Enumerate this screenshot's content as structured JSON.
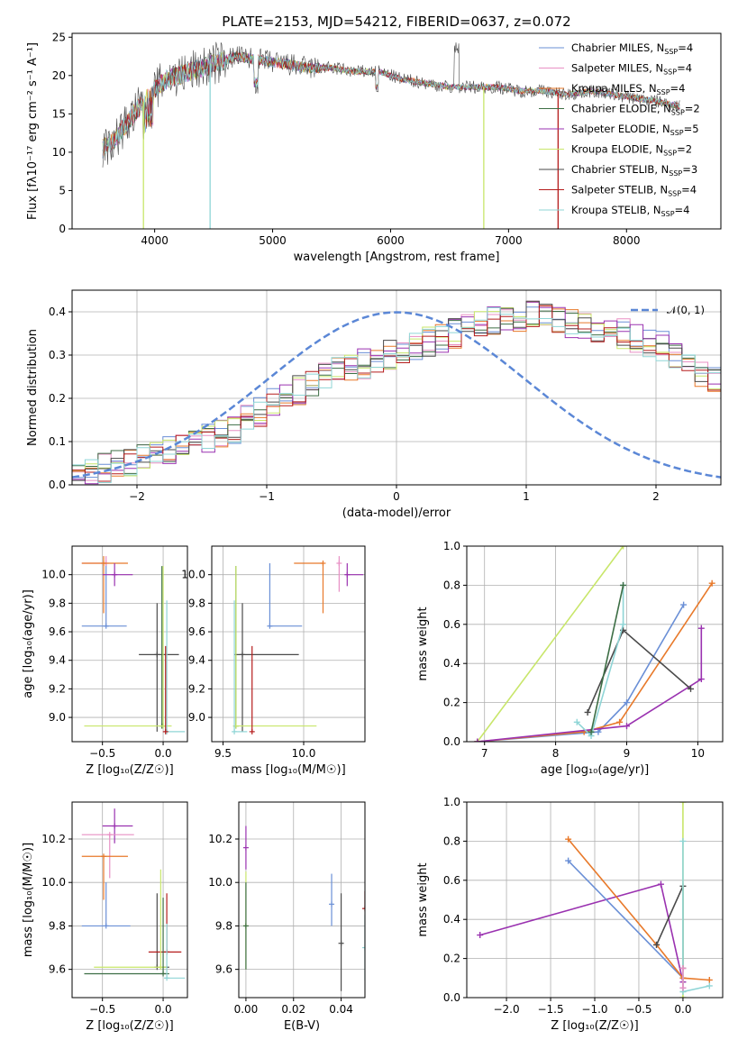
{
  "colors": {
    "chabrier_miles": "#6a8fd6",
    "salpeter_miles": "#e88fc4",
    "kroupa_miles": "#e8792a",
    "chabrier_elodie": "#3d6e45",
    "salpeter_elodie": "#9a32b0",
    "kroupa_elodie": "#c8e66a",
    "chabrier_stelib": "#4a4a4a",
    "salpeter_stelib": "#b51c1c",
    "kroupa_stelib": "#8fd5d6",
    "normal_curve": "#5b87d6"
  },
  "chart_data": [
    {
      "id": "spectrum",
      "type": "line",
      "title": "PLATE=2153, MJD=54212, FIBERID=0637, z=0.072",
      "xlabel": "wavelength [Angstrom, rest frame]",
      "ylabel": "Flux [fλ10⁻¹⁷ erg cm⁻² s⁻¹ A⁻¹]",
      "xlim": [
        3300,
        8800
      ],
      "ylim": [
        0,
        25.5
      ],
      "xticks": [
        "4000",
        "5000",
        "6000",
        "7000",
        "8000"
      ],
      "yticks": [
        "0",
        "5",
        "10",
        "15",
        "20",
        "25"
      ],
      "grid": false,
      "legend_position": "top-right",
      "legend": [
        {
          "main": "Chabrier MILES, N",
          "sub": "SSP",
          "tail": "=4",
          "color": "#6a8fd6"
        },
        {
          "main": "Salpeter MILES, N",
          "sub": "SSP",
          "tail": "=4",
          "color": "#e88fc4"
        },
        {
          "main": "Kroupa MILES, N",
          "sub": "SSP",
          "tail": "=4",
          "color": "#e8792a"
        },
        {
          "main": "Chabrier ELODIE, N",
          "sub": "SSP",
          "tail": "=2",
          "color": "#3d6e45"
        },
        {
          "main": "Salpeter ELODIE, N",
          "sub": "SSP",
          "tail": "=5",
          "color": "#9a32b0"
        },
        {
          "main": "Kroupa ELODIE, N",
          "sub": "SSP",
          "tail": "=2",
          "color": "#c8e66a"
        },
        {
          "main": "Chabrier STELIB, N",
          "sub": "SSP",
          "tail": "=3",
          "color": "#4a4a4a"
        },
        {
          "main": "Salpeter STELIB, N",
          "sub": "SSP",
          "tail": "=4",
          "color": "#b51c1c"
        },
        {
          "main": "Kroupa STELIB, N",
          "sub": "SSP",
          "tail": "=4",
          "color": "#8fd5d6"
        }
      ],
      "continuum": {
        "x": [
          3560,
          3650,
          3800,
          3950,
          4100,
          4300,
          4500,
          4700,
          4900,
          5100,
          5300,
          5500,
          5700,
          5900,
          6100,
          6300,
          6500,
          6700,
          6900,
          7100,
          7300,
          7500,
          7700,
          7900,
          8100,
          8300,
          8450
        ],
        "y": [
          10.5,
          11.5,
          14.5,
          17.5,
          19.5,
          20.5,
          21.5,
          22.5,
          22.0,
          21.5,
          21.0,
          21.0,
          20.5,
          20.5,
          19.5,
          19.0,
          18.5,
          18.5,
          18.5,
          18.0,
          18.0,
          17.5,
          18.0,
          17.5,
          17.0,
          16.5,
          16.0
        ]
      },
      "dips": [
        {
          "x": 3905,
          "y": 0.0,
          "series": "Kroupa ELODIE"
        },
        {
          "x": 4470,
          "y": 0.0,
          "series": "Kroupa STELIB"
        },
        {
          "x": 6790,
          "y": 0.0,
          "series": "Kroupa ELODIE"
        },
        {
          "x": 7420,
          "y": 0.0,
          "series": "Salpeter STELIB"
        }
      ]
    },
    {
      "id": "residuals",
      "type": "step",
      "xlabel": "(data-model)/error",
      "ylabel": "Normed distribution",
      "xlim": [
        -2.5,
        2.5
      ],
      "ylim": [
        0,
        0.45
      ],
      "xticks": [
        "−2",
        "−1",
        "0",
        "1",
        "2"
      ],
      "yticks": [
        "0.0",
        "0.1",
        "0.2",
        "0.3",
        "0.4"
      ],
      "grid": true,
      "legend_position": "top-right",
      "legend": [
        {
          "label": "𝒩(0, 1)",
          "style": "dashed",
          "color": "#5b87d6"
        }
      ],
      "bin_width": 0.1,
      "histogram_mean": [
        0.03,
        0.035,
        0.04,
        0.045,
        0.05,
        0.06,
        0.07,
        0.08,
        0.09,
        0.1,
        0.11,
        0.12,
        0.13,
        0.15,
        0.17,
        0.19,
        0.2,
        0.22,
        0.24,
        0.25,
        0.26,
        0.27,
        0.28,
        0.29,
        0.3,
        0.31,
        0.32,
        0.33,
        0.34,
        0.35,
        0.36,
        0.37,
        0.38,
        0.385,
        0.39,
        0.395,
        0.385,
        0.38,
        0.37,
        0.37,
        0.36,
        0.36,
        0.35,
        0.34,
        0.33,
        0.32,
        0.3,
        0.28,
        0.26,
        0.24,
        0.22,
        0.2,
        0.18,
        0.16,
        0.15,
        0.14,
        0.13,
        0.12,
        0.11,
        0.1,
        0.09,
        0.08,
        0.075,
        0.07,
        0.06,
        0.055,
        0.05,
        0.045,
        0.04,
        0.035,
        0.03,
        0.03
      ]
    },
    {
      "id": "age-vs-Z",
      "type": "errorbar",
      "xlabel": "Z [log₁₀(Z/Z☉)]",
      "ylabel": "age  [log₁₀(age/yr)]",
      "xlim": [
        -0.75,
        0.2
      ],
      "ylim": [
        8.83,
        10.2
      ],
      "xticks": [
        "−0.5",
        "0.0"
      ],
      "yticks": [
        "9.0",
        "9.2",
        "9.4",
        "9.6",
        "9.8",
        "10.0"
      ],
      "grid": true,
      "points": [
        {
          "series": "Chabrier MILES",
          "x": -0.47,
          "xerr": [
            0.2,
            0.17
          ],
          "y": 9.64,
          "yerr": [
            0.0,
            0.44
          ]
        },
        {
          "series": "Salpeter MILES",
          "x": -0.47,
          "xerr": [
            0.2,
            0.0
          ],
          "y": 10.08,
          "yerr": [
            0.0,
            0.05
          ]
        },
        {
          "series": "Kroupa MILES",
          "x": -0.49,
          "xerr": [
            0.18,
            0.2
          ],
          "y": 10.08,
          "yerr": [
            0.35,
            0.05
          ]
        },
        {
          "series": "Salpeter ELODIE",
          "x": -0.4,
          "xerr": [
            0.1,
            0.15
          ],
          "y": 10.0,
          "yerr": [
            0.08,
            0.08
          ]
        },
        {
          "series": "Chabrier STELIB",
          "x": -0.05,
          "xerr": [
            0.15,
            0.18
          ],
          "y": 9.44,
          "yerr": [
            0.54,
            0.36
          ]
        },
        {
          "series": "Chabrier ELODIE",
          "x": -0.01,
          "xerr": [
            0.0,
            0.0
          ],
          "y": 8.94,
          "yerr": [
            0.0,
            1.12
          ]
        },
        {
          "series": "Kroupa ELODIE",
          "x": 0.0,
          "xerr": [
            0.65,
            0.07
          ],
          "y": 8.94,
          "yerr": [
            0.0,
            1.12
          ]
        },
        {
          "series": "Kroupa STELIB",
          "x": 0.03,
          "xerr": [
            0.02,
            0.15
          ],
          "y": 8.9,
          "yerr": [
            0.0,
            0.92
          ]
        },
        {
          "series": "Salpeter STELIB",
          "x": 0.02,
          "xerr": [
            0.0,
            0.0
          ],
          "y": 8.9,
          "yerr": [
            0.0,
            0.6
          ]
        }
      ]
    },
    {
      "id": "age-vs-mass",
      "type": "errorbar",
      "xlabel": "mass [log₁₀(M/M☉)]",
      "ylabel": "",
      "xlim": [
        9.43,
        10.38
      ],
      "ylim": [
        8.83,
        10.2
      ],
      "xticks": [
        "9.5",
        "10.0"
      ],
      "yticks": [
        "9.0",
        "9.2",
        "9.4",
        "9.6",
        "9.8",
        "10.0"
      ],
      "grid": true,
      "points": [
        {
          "series": "Chabrier MILES",
          "x": 9.79,
          "xerr": [
            0.0,
            0.2
          ],
          "y": 9.64,
          "yerr": [
            0.0,
            0.44
          ]
        },
        {
          "series": "Salpeter MILES",
          "x": 10.22,
          "xerr": [
            0.0,
            0.0
          ],
          "y": 10.08,
          "yerr": [
            0.2,
            0.05
          ]
        },
        {
          "series": "Kroupa MILES",
          "x": 10.12,
          "xerr": [
            0.18,
            0.0
          ],
          "y": 10.08,
          "yerr": [
            0.35,
            0.0
          ]
        },
        {
          "series": "Salpeter ELODIE",
          "x": 10.27,
          "xerr": [
            0.0,
            0.1
          ],
          "y": 10.0,
          "yerr": [
            0.08,
            0.08
          ]
        },
        {
          "series": "Chabrier STELIB",
          "x": 9.62,
          "xerr": [
            0.05,
            0.35
          ],
          "y": 9.44,
          "yerr": [
            0.54,
            0.36
          ]
        },
        {
          "series": "Chabrier ELODIE",
          "x": 9.58,
          "xerr": [
            0.0,
            0.0
          ],
          "y": 8.94,
          "yerr": [
            0.0,
            1.12
          ]
        },
        {
          "series": "Kroupa ELODIE",
          "x": 9.58,
          "xerr": [
            0.0,
            0.5
          ],
          "y": 8.94,
          "yerr": [
            0.0,
            1.12
          ]
        },
        {
          "series": "Kroupa STELIB",
          "x": 9.57,
          "xerr": [
            0.0,
            0.08
          ],
          "y": 8.9,
          "yerr": [
            0.0,
            0.92
          ]
        },
        {
          "series": "Salpeter STELIB",
          "x": 9.68,
          "xerr": [
            0.0,
            0.0
          ],
          "y": 8.9,
          "yerr": [
            0.0,
            0.6
          ]
        }
      ]
    },
    {
      "id": "massweight-vs-age",
      "type": "line",
      "xlabel": "age  [log₁₀(age/yr)]",
      "ylabel": "mass weight",
      "xlim": [
        6.75,
        10.35
      ],
      "ylim": [
        0,
        1
      ],
      "xticks": [
        "7",
        "8",
        "9",
        "10"
      ],
      "yticks": [
        "0.0",
        "0.2",
        "0.4",
        "0.6",
        "0.8",
        "1.0"
      ],
      "grid": true,
      "series": [
        {
          "name": "Kroupa ELODIE",
          "x": [
            6.9,
            8.95
          ],
          "y": [
            0.0,
            1.0
          ]
        },
        {
          "name": "Chabrier MILES",
          "x": [
            6.9,
            8.6,
            9.0,
            9.8
          ],
          "y": [
            0.0,
            0.05,
            0.2,
            0.7
          ]
        },
        {
          "name": "Kroupa MILES",
          "x": [
            6.9,
            8.4,
            8.9,
            10.2
          ],
          "y": [
            0.0,
            0.05,
            0.1,
            0.81
          ]
        },
        {
          "name": "Salpeter ELODIE",
          "x": [
            6.9,
            9.0,
            10.05,
            10.05
          ],
          "y": [
            0.0,
            0.08,
            0.32,
            0.58
          ]
        },
        {
          "name": "Chabrier STELIB",
          "x": [
            8.45,
            8.95,
            9.9
          ],
          "y": [
            0.15,
            0.57,
            0.27
          ]
        },
        {
          "name": "Kroupa STELIB",
          "x": [
            8.3,
            8.5,
            8.95,
            8.95
          ],
          "y": [
            0.1,
            0.03,
            0.6,
            0.8
          ]
        },
        {
          "name": "Chabrier ELODIE",
          "x": [
            8.5,
            8.95
          ],
          "y": [
            0.05,
            0.8
          ]
        }
      ]
    },
    {
      "id": "mass-vs-Z",
      "type": "errorbar",
      "xlabel": "Z [log₁₀(Z/Z☉)]",
      "ylabel": "mass [log₁₀(M/M☉)]",
      "xlim": [
        -0.75,
        0.2
      ],
      "ylim": [
        9.47,
        10.37
      ],
      "xticks": [
        "−0.5",
        "0.0"
      ],
      "yticks": [
        "9.6",
        "9.8",
        "10.0",
        "10.2"
      ],
      "grid": true,
      "points": [
        {
          "series": "Salpeter ELODIE",
          "x": -0.4,
          "xerr": [
            0.1,
            0.15
          ],
          "y": 10.26,
          "yerr": [
            0.08,
            0.08
          ]
        },
        {
          "series": "Salpeter MILES",
          "x": -0.44,
          "xerr": [
            0.23,
            0.2
          ],
          "y": 10.22,
          "yerr": [
            0.2,
            0.0
          ]
        },
        {
          "series": "Kroupa MILES",
          "x": -0.49,
          "xerr": [
            0.18,
            0.2
          ],
          "y": 10.12,
          "yerr": [
            0.2,
            0.0
          ]
        },
        {
          "series": "Chabrier MILES",
          "x": -0.47,
          "xerr": [
            0.2,
            0.2
          ],
          "y": 9.8,
          "yerr": [
            0.0,
            0.2
          ]
        },
        {
          "series": "Chabrier STELIB",
          "x": -0.05,
          "xerr": [
            0.0,
            0.1
          ],
          "y": 9.61,
          "yerr": [
            0.0,
            0.34
          ]
        },
        {
          "series": "Salpeter STELIB",
          "x": 0.03,
          "xerr": [
            0.15,
            0.12
          ],
          "y": 9.68,
          "yerr": [
            0.0,
            0.27
          ]
        },
        {
          "series": "Kroupa ELODIE",
          "x": -0.02,
          "xerr": [
            0.55,
            0.05
          ],
          "y": 9.61,
          "yerr": [
            0.0,
            0.45
          ]
        },
        {
          "series": "Chabrier ELODIE",
          "x": 0.0,
          "xerr": [
            0.65,
            0.05
          ],
          "y": 9.58,
          "yerr": [
            0.0,
            0.35
          ]
        },
        {
          "series": "Kroupa STELIB",
          "x": 0.03,
          "xerr": [
            0.02,
            0.15
          ],
          "y": 9.56,
          "yerr": [
            0.0,
            0.25
          ]
        }
      ]
    },
    {
      "id": "mass-vs-EBV",
      "type": "errorbar",
      "xlabel": "E(B-V)",
      "ylabel": "",
      "xlim": [
        -0.003,
        0.05
      ],
      "ylim": [
        9.47,
        10.37
      ],
      "xticks": [
        "0.00",
        "0.02",
        "0.04"
      ],
      "yticks": [
        "9.6",
        "9.8",
        "10.0",
        "10.2"
      ],
      "grid": true,
      "points": [
        {
          "series": "Salpeter ELODIE",
          "x": 0.0,
          "y": 10.16,
          "yerr": [
            0.1,
            0.1
          ]
        },
        {
          "series": "Kroupa ELODIE",
          "x": 0.0,
          "y": 9.8,
          "yerr": [
            0.2,
            0.25
          ]
        },
        {
          "series": "Chabrier ELODIE",
          "x": 0.0,
          "y": 9.8,
          "yerr": [
            0.2,
            0.2
          ]
        },
        {
          "series": "Chabrier MILES",
          "x": 0.036,
          "y": 9.9,
          "yerr": [
            0.1,
            0.14
          ]
        },
        {
          "series": "Chabrier STELIB",
          "x": 0.04,
          "y": 9.72,
          "yerr": [
            0.22,
            0.23
          ]
        },
        {
          "series": "Salpeter STELIB",
          "x": 0.05,
          "y": 9.88,
          "yerr": [
            0.0,
            0.08
          ]
        },
        {
          "series": "Kroupa STELIB",
          "x": 0.05,
          "y": 9.7,
          "yerr": [
            0.15,
            0.15
          ]
        }
      ]
    },
    {
      "id": "massweight-vs-Z",
      "type": "line",
      "xlabel": "Z [log₁₀(Z/Z☉)]",
      "ylabel": "mass weight",
      "xlim": [
        -2.45,
        0.45
      ],
      "ylim": [
        0,
        1
      ],
      "xticks": [
        "−2.0",
        "−1.5",
        "−1.0",
        "−0.5",
        "0.0"
      ],
      "yticks": [
        "0.0",
        "0.2",
        "0.4",
        "0.6",
        "0.8",
        "1.0"
      ],
      "grid": true,
      "series": [
        {
          "name": "Salpeter ELODIE",
          "x": [
            -2.3,
            -0.25,
            0.0
          ],
          "y": [
            0.32,
            0.58,
            0.08
          ]
        },
        {
          "name": "Chabrier MILES",
          "x": [
            -1.3,
            0.0,
            0.0
          ],
          "y": [
            0.7,
            0.1,
            0.05
          ]
        },
        {
          "name": "Kroupa MILES",
          "x": [
            -1.3,
            -0.3,
            0.0,
            0.3
          ],
          "y": [
            0.81,
            0.27,
            0.1,
            0.09
          ]
        },
        {
          "name": "Chabrier STELIB",
          "x": [
            -0.3,
            0.0,
            0.0
          ],
          "y": [
            0.27,
            0.57,
            0.15
          ]
        },
        {
          "name": "Kroupa ELODIE",
          "x": [
            0.0,
            0.0
          ],
          "y": [
            1.0,
            0.0
          ]
        },
        {
          "name": "Kroupa STELIB",
          "x": [
            0.0,
            0.0,
            0.3
          ],
          "y": [
            0.8,
            0.03,
            0.06
          ]
        },
        {
          "name": "Salpeter MILES",
          "x": [
            0.0,
            0.0
          ],
          "y": [
            0.05,
            0.15
          ]
        }
      ]
    }
  ]
}
